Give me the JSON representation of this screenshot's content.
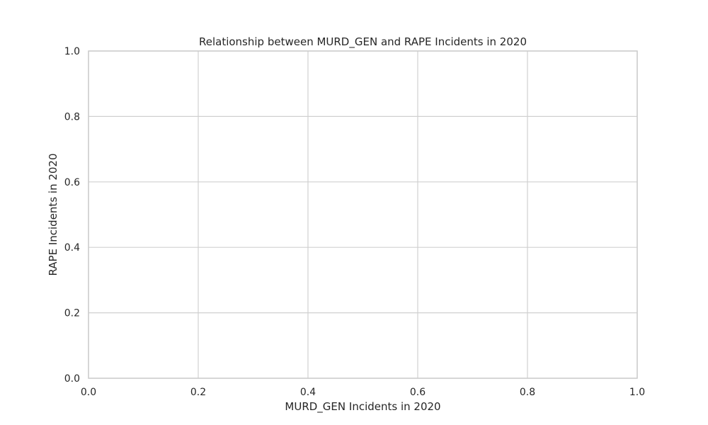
{
  "chart_data": {
    "type": "scatter",
    "title": "Relationship between MURD_GEN and RAPE Incidents in 2020",
    "xlabel": "MURD_GEN Incidents in 2020",
    "ylabel": "RAPE Incidents in 2020",
    "xlim": [
      0,
      1
    ],
    "ylim": [
      0,
      1
    ],
    "xticks": [
      "0.0",
      "0.2",
      "0.4",
      "0.6",
      "0.8",
      "1.0"
    ],
    "yticks": [
      "0.0",
      "0.2",
      "0.4",
      "0.6",
      "0.8",
      "1.0"
    ],
    "series": [],
    "grid": true,
    "grid_color": "#d0d0d0",
    "frame_color": "#cccccc",
    "background": "#ffffff"
  }
}
